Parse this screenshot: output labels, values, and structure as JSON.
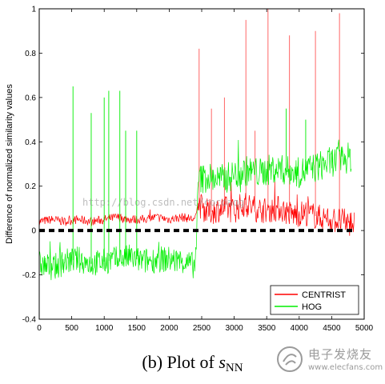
{
  "chart_data": {
    "type": "line",
    "ylabel": "Difference of normalized similarity values",
    "xlim": [
      0,
      5000
    ],
    "ylim": [
      -0.4,
      1.0
    ],
    "xticks": [
      "0",
      "500",
      "1000",
      "1500",
      "2000",
      "2500",
      "3000",
      "3500",
      "4000",
      "4500",
      "5000"
    ],
    "yticks": [
      "-0.4",
      "-0.2",
      "0",
      "0.2",
      "0.4",
      "0.6",
      "0.8",
      "1"
    ],
    "series": [
      {
        "name": "CENTRIST",
        "color": "#ff0000",
        "x": [
          0,
          200,
          400,
          600,
          800,
          1000,
          1200,
          1400,
          1600,
          1800,
          2000,
          2200,
          2400,
          2450,
          2600,
          2800,
          3000,
          3150,
          3300,
          3500,
          3700,
          3900,
          4100,
          4300,
          4500,
          4700,
          4850
        ],
        "values": [
          0.04,
          0.05,
          0.04,
          0.05,
          0.04,
          0.05,
          0.06,
          0.05,
          0.05,
          0.06,
          0.05,
          0.06,
          0.05,
          0.12,
          0.08,
          0.1,
          0.09,
          0.12,
          0.1,
          0.09,
          0.1,
          0.07,
          0.08,
          0.06,
          0.05,
          0.04,
          0.03
        ],
        "spikes": [
          [
            2460,
            0.82
          ],
          [
            2650,
            0.55
          ],
          [
            2850,
            0.6
          ],
          [
            3180,
            0.95
          ],
          [
            3320,
            0.45
          ],
          [
            3520,
            1.0
          ],
          [
            3850,
            0.88
          ],
          [
            4250,
            0.9
          ],
          [
            4620,
            0.98
          ]
        ]
      },
      {
        "name": "HOG",
        "color": "#00ee00",
        "x": [
          0,
          200,
          400,
          600,
          800,
          1000,
          1200,
          1400,
          1600,
          1800,
          2000,
          2200,
          2400,
          2450,
          2600,
          2800,
          3000,
          3200,
          3400,
          3600,
          3800,
          4000,
          4200,
          4400,
          4600,
          4800
        ],
        "values": [
          -0.15,
          -0.17,
          -0.14,
          -0.13,
          -0.15,
          -0.14,
          -0.13,
          -0.12,
          -0.14,
          -0.13,
          -0.13,
          -0.14,
          -0.16,
          0.23,
          0.24,
          0.23,
          0.25,
          0.27,
          0.26,
          0.28,
          0.27,
          0.26,
          0.28,
          0.3,
          0.32,
          0.33
        ],
        "spikes": [
          [
            520,
            0.65
          ],
          [
            800,
            0.53
          ],
          [
            1000,
            0.6
          ],
          [
            1070,
            0.63
          ],
          [
            1240,
            0.63
          ],
          [
            1330,
            0.45
          ],
          [
            1500,
            0.45
          ],
          [
            3800,
            0.55
          ],
          [
            4100,
            0.5
          ]
        ]
      },
      {
        "name": "",
        "color": "#000000",
        "x": [
          0,
          4850
        ],
        "values": [
          0,
          0
        ]
      }
    ],
    "legend_position": "bottom-right",
    "grid": false
  },
  "watermark": "http://blog.csdn.net/cocoaqg",
  "caption": {
    "prefix": "(b) Plot of ",
    "symbol": "s",
    "subscript": "NN"
  },
  "logo": {
    "name": "电子发烧友",
    "url": "www.elecfans.com"
  }
}
